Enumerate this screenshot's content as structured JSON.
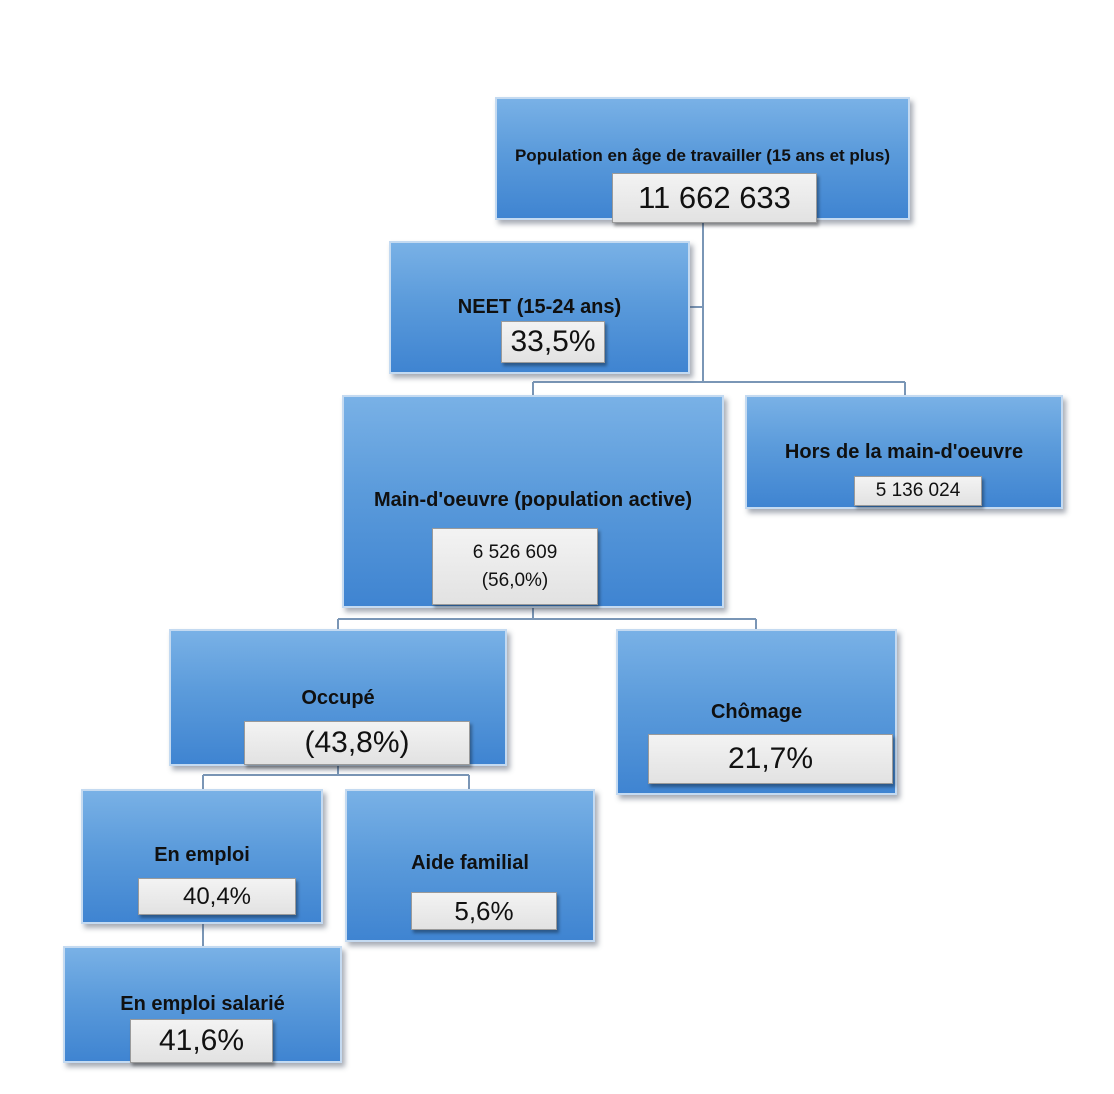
{
  "nodes": {
    "population": {
      "title": "Population en âge de travailler (15 ans et plus)",
      "value": "11 662 633"
    },
    "neet": {
      "title": "NEET (15-24 ans)",
      "value": "33,5%"
    },
    "main_oeuvre": {
      "title": "Main-d'oeuvre (population active)",
      "value": "6 526 609",
      "value2": "(56,0%)"
    },
    "hors": {
      "title": "Hors de la main-d'oeuvre",
      "value": "5 136 024"
    },
    "occupe": {
      "title": "Occupé",
      "value": "(43,8%)"
    },
    "chomage": {
      "title": "Chômage",
      "value": "21,7%"
    },
    "en_emploi": {
      "title": "En emploi",
      "value": "40,4%"
    },
    "aide_familial": {
      "title": "Aide familial",
      "value": "5,6%"
    },
    "en_emploi_salarie": {
      "title": "En emploi salarié",
      "value": "41,6%"
    }
  },
  "colors": {
    "node_fill": "#5b9bdb",
    "node_border": "#c4daf1",
    "connector": "#7a96b6",
    "value_box": "#e6e6e6"
  }
}
